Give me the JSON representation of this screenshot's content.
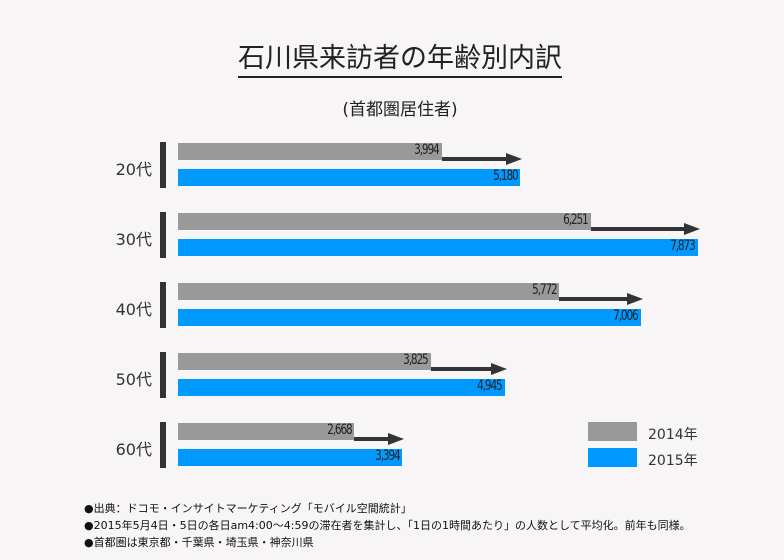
{
  "chart_data": {
    "type": "bar",
    "orientation": "horizontal",
    "title": "石川県来訪者の年齢別内訳",
    "subtitle": "(首都圏居住者)",
    "categories": [
      "20代",
      "30代",
      "40代",
      "50代",
      "60代"
    ],
    "series": [
      {
        "name": "2014年",
        "color": "#999999",
        "values": [
          3994,
          6251,
          5772,
          3825,
          2668
        ]
      },
      {
        "name": "2015年",
        "color": "#0099ff",
        "values": [
          5180,
          7873,
          7006,
          4945,
          3394
        ]
      }
    ],
    "data_labels": {
      "2014年": [
        "3,994",
        "6,251",
        "5,772",
        "3,825",
        "2,668"
      ],
      "2015年": [
        "5,180",
        "7,873",
        "7,006",
        "4,945",
        "3,394"
      ]
    },
    "legend_position": "bottom-right",
    "grid": false,
    "arrows": "2014→2015 per category"
  },
  "notes": [
    "●出典：ドコモ・インサイトマーケティング「モバイル空間統計」",
    "●2015年5月4日・5日の各日am4:00～4:59の滞在者を集計し、「1日の1時間あたり」の人数として平均化。前年も同様。",
    "●首都圏は東京都・千葉県・埼玉県・神奈川県"
  ]
}
